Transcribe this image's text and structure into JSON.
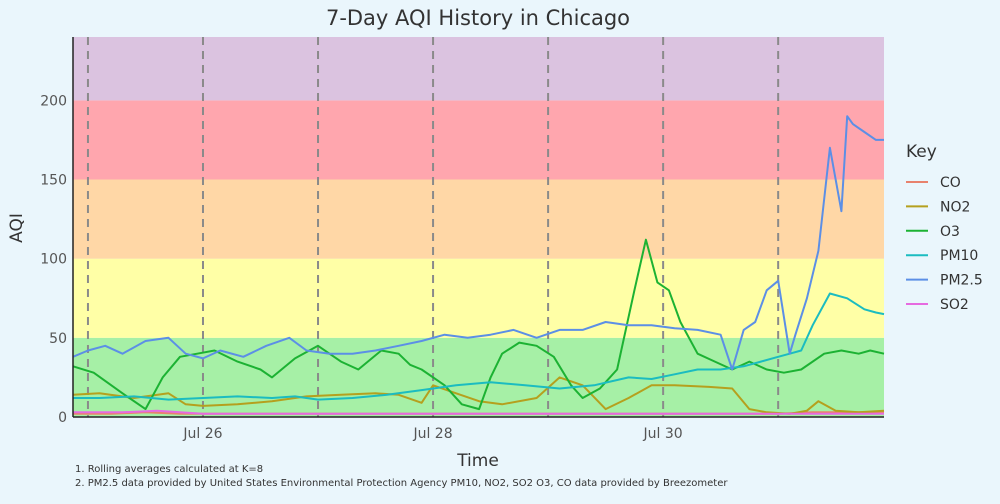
{
  "chart_data": {
    "type": "line",
    "title": "7-Day AQI History in Chicago",
    "xlabel": "Time",
    "ylabel": "AQI",
    "xlim": [
      -1.13,
      5.92
    ],
    "ylim": [
      0,
      240
    ],
    "x_ticks": [
      {
        "x": 0,
        "label": "Jul 26"
      },
      {
        "x": 2,
        "label": "Jul 28"
      },
      {
        "x": 4,
        "label": "Jul 30"
      }
    ],
    "y_ticks": [
      0,
      50,
      100,
      150,
      200
    ],
    "day_boundaries": [
      -1,
      0,
      1,
      2,
      3,
      4,
      5
    ],
    "bands": [
      {
        "from": 0,
        "to": 50,
        "color": "#a6f0a6"
      },
      {
        "from": 50,
        "to": 100,
        "color": "#ffffa6"
      },
      {
        "from": 100,
        "to": 150,
        "color": "#ffd7a6"
      },
      {
        "from": 150,
        "to": 200,
        "color": "#ffa6ae"
      },
      {
        "from": 200,
        "to": 240,
        "color": "#dbc3e0"
      }
    ],
    "legend_title": "Key",
    "legend_position": "right",
    "series": [
      {
        "name": "CO",
        "color": "#e8826d",
        "x": [
          -1.13,
          -0.8,
          -0.5,
          -0.2,
          0.2,
          0.6,
          1.0,
          1.5,
          2.0,
          2.5,
          3.0,
          3.5,
          4.0,
          4.5,
          5.0,
          5.3,
          5.6,
          5.92
        ],
        "y": [
          2,
          2,
          3,
          2,
          2,
          2,
          2,
          2,
          2,
          2,
          2,
          2,
          2,
          2,
          2,
          3,
          3,
          3
        ]
      },
      {
        "name": "NO2",
        "color": "#b5a01e",
        "x": [
          -1.13,
          -0.9,
          -0.6,
          -0.3,
          -0.15,
          0.0,
          0.3,
          0.6,
          0.9,
          1.2,
          1.5,
          1.7,
          1.9,
          2.0,
          2.2,
          2.4,
          2.6,
          2.9,
          3.1,
          3.3,
          3.5,
          3.7,
          3.9,
          4.1,
          4.4,
          4.6,
          4.75,
          4.9,
          5.1,
          5.25,
          5.35,
          5.5,
          5.7,
          5.92
        ],
        "y": [
          14,
          15,
          12,
          15,
          8,
          7,
          8,
          10,
          13,
          14,
          15,
          14,
          9,
          20,
          15,
          10,
          8,
          12,
          25,
          20,
          5,
          12,
          20,
          20,
          19,
          18,
          5,
          3,
          2,
          4,
          10,
          4,
          3,
          4
        ]
      },
      {
        "name": "O3",
        "color": "#1cb233",
        "x": [
          -1.13,
          -0.95,
          -0.7,
          -0.5,
          -0.35,
          -0.2,
          -0.05,
          0.1,
          0.3,
          0.5,
          0.6,
          0.8,
          1.0,
          1.2,
          1.35,
          1.55,
          1.7,
          1.8,
          1.9,
          2.1,
          2.25,
          2.4,
          2.5,
          2.6,
          2.75,
          2.9,
          3.05,
          3.2,
          3.3,
          3.45,
          3.6,
          3.75,
          3.85,
          3.95,
          4.05,
          4.15,
          4.3,
          4.45,
          4.6,
          4.75,
          4.9,
          5.05,
          5.2,
          5.4,
          5.55,
          5.7,
          5.8,
          5.92
        ],
        "y": [
          32,
          28,
          15,
          5,
          25,
          38,
          40,
          42,
          35,
          30,
          25,
          37,
          45,
          35,
          30,
          42,
          40,
          33,
          30,
          20,
          8,
          5,
          25,
          40,
          47,
          45,
          38,
          20,
          12,
          18,
          30,
          80,
          112,
          85,
          80,
          60,
          40,
          35,
          30,
          35,
          30,
          28,
          30,
          40,
          42,
          40,
          42,
          40
        ]
      },
      {
        "name": "PM10",
        "color": "#1bbcc0",
        "x": [
          -1.13,
          -0.9,
          -0.6,
          -0.3,
          0.0,
          0.3,
          0.6,
          0.8,
          1.0,
          1.3,
          1.6,
          1.9,
          2.2,
          2.5,
          2.8,
          3.1,
          3.4,
          3.7,
          3.9,
          4.1,
          4.3,
          4.5,
          4.7,
          4.85,
          5.0,
          5.1,
          5.2,
          5.3,
          5.45,
          5.6,
          5.75,
          5.85,
          5.92
        ],
        "y": [
          12,
          12,
          13,
          11,
          12,
          13,
          12,
          13,
          11,
          12,
          14,
          17,
          20,
          22,
          20,
          18,
          20,
          25,
          24,
          27,
          30,
          30,
          32,
          35,
          38,
          40,
          42,
          58,
          78,
          75,
          68,
          66,
          65
        ]
      },
      {
        "name": "PM2.5",
        "color": "#5c8fe6",
        "x": [
          -1.13,
          -1.0,
          -0.85,
          -0.7,
          -0.5,
          -0.3,
          -0.15,
          0.0,
          0.15,
          0.35,
          0.55,
          0.75,
          0.9,
          1.1,
          1.3,
          1.5,
          1.7,
          1.9,
          2.1,
          2.3,
          2.5,
          2.7,
          2.9,
          3.1,
          3.3,
          3.5,
          3.7,
          3.9,
          4.1,
          4.3,
          4.5,
          4.6,
          4.7,
          4.8,
          4.9,
          5.0,
          5.1,
          5.15,
          5.25,
          5.35,
          5.45,
          5.55,
          5.6,
          5.65,
          5.75,
          5.85,
          5.92
        ],
        "y": [
          38,
          42,
          45,
          40,
          48,
          50,
          40,
          37,
          42,
          38,
          45,
          50,
          42,
          40,
          40,
          42,
          45,
          48,
          52,
          50,
          52,
          55,
          50,
          55,
          55,
          60,
          58,
          58,
          56,
          55,
          52,
          30,
          55,
          60,
          80,
          86,
          40,
          52,
          75,
          105,
          170,
          130,
          190,
          185,
          180,
          175,
          175
        ]
      },
      {
        "name": "SO2",
        "color": "#e66ae0",
        "x": [
          -1.13,
          -0.7,
          -0.4,
          0.0,
          0.5,
          1.0,
          1.5,
          2.0,
          2.5,
          3.0,
          3.5,
          4.0,
          4.5,
          5.0,
          5.5,
          5.92
        ],
        "y": [
          3,
          3,
          4,
          2,
          2,
          2,
          2,
          2,
          2,
          2,
          2,
          2,
          2,
          2,
          2,
          2
        ]
      }
    ],
    "footnotes": [
      "1. Rolling averages calculated at K=8",
      "2. PM2.5 data provided by United States Environmental Protection Agency PM10, NO2, SO2 O3, CO data provided by Breezometer"
    ]
  }
}
